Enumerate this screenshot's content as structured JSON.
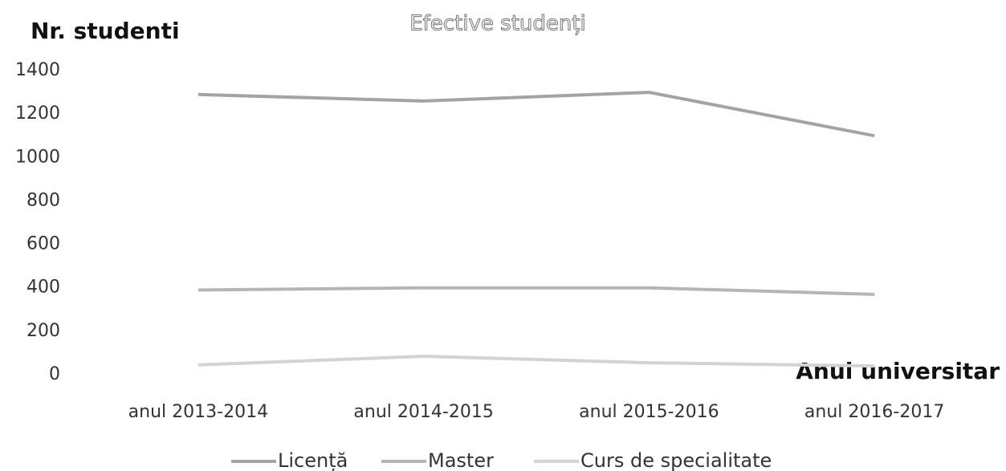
{
  "chart_data": {
    "type": "line",
    "title": "Efective studenți",
    "y_label": "Nr. studenti",
    "x_label": "Anul universitar",
    "categories": [
      "anul 2013-2014",
      "anul 2014-2015",
      "anul 2015-2016",
      "anul 2016-2017"
    ],
    "series": [
      {
        "name": "Licență",
        "color": "#a3a3a3",
        "values": [
          1290,
          1260,
          1300,
          1100
        ]
      },
      {
        "name": "Master",
        "color": "#b5b5b5",
        "values": [
          390,
          400,
          400,
          370
        ]
      },
      {
        "name": "Curs de specialitate",
        "color": "#d3d3d3",
        "values": [
          45,
          85,
          55,
          40
        ]
      }
    ],
    "ylim": [
      0,
      1400
    ],
    "yticks": [
      0,
      200,
      400,
      600,
      800,
      1000,
      1200,
      1400
    ],
    "grid": false,
    "legend": "bottom"
  }
}
